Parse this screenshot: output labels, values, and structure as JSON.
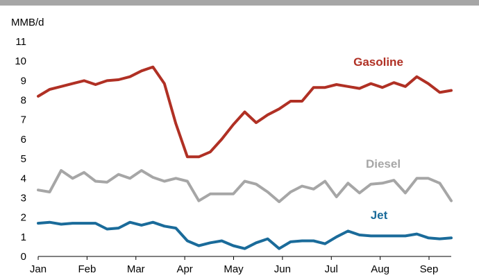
{
  "chart_data": {
    "type": "line",
    "unit_label": "MMB/d",
    "xlabel": "",
    "ylabel": "",
    "ylim": [
      0,
      11
    ],
    "y_ticks": [
      0,
      1,
      2,
      3,
      4,
      5,
      6,
      7,
      8,
      9,
      10,
      11
    ],
    "x_range_weeks": [
      0,
      37.2
    ],
    "x_month_labels": [
      {
        "label": "Jan",
        "week": 0
      },
      {
        "label": "Feb",
        "week": 4.4
      },
      {
        "label": "Mar",
        "week": 8.8
      },
      {
        "label": "Apr",
        "week": 13.2
      },
      {
        "label": "May",
        "week": 17.6
      },
      {
        "label": "Jun",
        "week": 22
      },
      {
        "label": "Jul",
        "week": 26.4
      },
      {
        "label": "Aug",
        "week": 30.8
      },
      {
        "label": "Sep",
        "week": 35.2
      }
    ],
    "grid": false,
    "series": [
      {
        "name": "Gasoline",
        "color": "#b03024",
        "values": [
          8.2,
          8.55,
          8.7,
          8.85,
          9.0,
          8.8,
          9.0,
          9.05,
          9.2,
          9.5,
          9.7,
          8.85,
          6.8,
          5.1,
          5.1,
          5.35,
          6.0,
          6.75,
          7.4,
          6.85,
          7.25,
          7.55,
          7.95,
          7.95,
          8.65,
          8.65,
          8.8,
          8.7,
          8.6,
          8.85,
          8.65,
          8.9,
          8.7,
          9.2,
          8.85,
          8.4,
          8.5
        ]
      },
      {
        "name": "Diesel",
        "color": "#a6a6a6",
        "values": [
          3.4,
          3.3,
          4.4,
          4.0,
          4.3,
          3.85,
          3.8,
          4.2,
          4.0,
          4.4,
          4.05,
          3.85,
          4.0,
          3.85,
          2.85,
          3.2,
          3.2,
          3.2,
          3.85,
          3.7,
          3.3,
          2.8,
          3.3,
          3.6,
          3.45,
          3.85,
          3.05,
          3.75,
          3.25,
          3.7,
          3.75,
          3.9,
          3.25,
          4.0,
          4.0,
          3.75,
          2.85
        ]
      },
      {
        "name": "Jet",
        "color": "#1a6b9a",
        "values": [
          1.7,
          1.75,
          1.65,
          1.7,
          1.7,
          1.7,
          1.4,
          1.45,
          1.75,
          1.6,
          1.75,
          1.55,
          1.45,
          0.8,
          0.55,
          0.7,
          0.8,
          0.55,
          0.4,
          0.7,
          0.9,
          0.4,
          0.75,
          0.8,
          0.8,
          0.65,
          1.0,
          1.3,
          1.1,
          1.05,
          1.05,
          1.05,
          1.05,
          1.15,
          0.95,
          0.9,
          0.95
        ]
      }
    ]
  }
}
